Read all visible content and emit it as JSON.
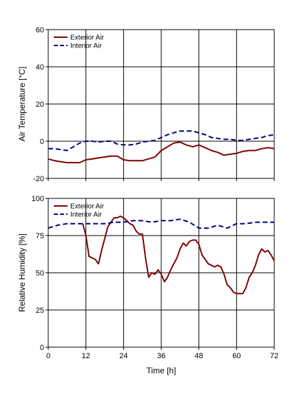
{
  "chart_data": [
    {
      "type": "line",
      "xlabel": "",
      "ylabel": "Air Temperature [°C]",
      "xlim": [
        0,
        72
      ],
      "ylim": [
        -20,
        60
      ],
      "xticks": [
        0,
        12,
        24,
        36,
        48,
        60,
        72
      ],
      "xtick_labels": [
        "",
        "",
        "",
        "",
        "",
        "",
        ""
      ],
      "yticks": [
        -20,
        0,
        20,
        40,
        60
      ],
      "ytick_labels": [
        "-20",
        "0",
        "20",
        "40",
        "60"
      ],
      "grid": true,
      "legend_position": "top-left",
      "series": [
        {
          "name": "Exterior Air",
          "color": "#800000",
          "style": "solid",
          "x": [
            0,
            2,
            4,
            6,
            8,
            10,
            12,
            14,
            16,
            18,
            20,
            22,
            24,
            26,
            28,
            30,
            32,
            34,
            36,
            38,
            40,
            42,
            44,
            46,
            48,
            50,
            52,
            54,
            56,
            58,
            60,
            62,
            64,
            66,
            68,
            70,
            72
          ],
          "y": [
            -9.5,
            -10.5,
            -11,
            -11.5,
            -11.5,
            -11.5,
            -10,
            -9.5,
            -9,
            -8.5,
            -8,
            -8,
            -10,
            -10.5,
            -10.5,
            -10.5,
            -9.5,
            -8.5,
            -5,
            -3,
            -1,
            -0.5,
            -2,
            -3,
            -2,
            -3.5,
            -5,
            -6,
            -7.5,
            -7,
            -6.5,
            -5.5,
            -5,
            -5,
            -4,
            -3.5,
            -4
          ]
        },
        {
          "name": "Interior Air",
          "color": "#00007f",
          "style": "dashed",
          "x": [
            0,
            2,
            4,
            6,
            8,
            10,
            12,
            14,
            16,
            18,
            20,
            22,
            24,
            26,
            28,
            30,
            32,
            34,
            36,
            38,
            40,
            42,
            44,
            46,
            48,
            50,
            52,
            54,
            56,
            58,
            60,
            62,
            64,
            66,
            68,
            70,
            72
          ],
          "y": [
            -4,
            -4,
            -4.5,
            -5,
            -3,
            -1,
            0,
            0,
            -0.5,
            0,
            0,
            -1.5,
            -2,
            -2,
            -1.5,
            -0.5,
            0,
            0.5,
            2,
            3.5,
            4.5,
            5.5,
            5.5,
            5.5,
            4.5,
            3.5,
            2,
            1.5,
            1,
            1,
            0.5,
            0.5,
            1,
            1.5,
            2,
            3,
            3.5
          ]
        }
      ]
    },
    {
      "type": "line",
      "xlabel": "Time [h]",
      "ylabel": "Relative Humidity [%]",
      "xlim": [
        0,
        72
      ],
      "ylim": [
        0,
        100
      ],
      "xticks": [
        0,
        12,
        24,
        36,
        48,
        60,
        72
      ],
      "xtick_labels": [
        "0",
        "12",
        "24",
        "36",
        "48",
        "60",
        "72"
      ],
      "yticks": [
        0,
        25,
        50,
        75,
        100
      ],
      "ytick_labels": [
        "0",
        "25",
        "50",
        "75",
        "100"
      ],
      "grid": true,
      "legend_position": "top-left",
      "series": [
        {
          "name": "Exterior Air",
          "color": "#800000",
          "style": "solid",
          "x": [
            11,
            12,
            13,
            14,
            15,
            16,
            17,
            18,
            19,
            20,
            21,
            22,
            23,
            24,
            25,
            26,
            27,
            28,
            29,
            30,
            31,
            32,
            33,
            34,
            35,
            36,
            37,
            38,
            39,
            40,
            41,
            42,
            43,
            44,
            45,
            46,
            47,
            48,
            49,
            50,
            51,
            52,
            53,
            54,
            55,
            56,
            57,
            58,
            59,
            60,
            61,
            62,
            63,
            64,
            65,
            66,
            67,
            68,
            69,
            70,
            71,
            72
          ],
          "y": [
            83,
            75,
            61,
            60,
            59,
            56,
            65,
            73,
            81,
            84,
            87,
            87,
            88,
            87,
            85,
            83,
            82,
            78,
            76,
            76,
            60,
            47,
            50,
            49,
            52,
            49,
            44,
            47,
            52,
            56,
            60,
            66,
            70,
            68,
            71,
            72,
            72,
            69,
            62,
            59,
            56,
            55,
            54,
            55,
            54,
            49,
            42,
            40,
            37,
            36,
            36,
            36,
            40,
            47,
            50,
            55,
            62,
            66,
            64,
            65,
            62,
            58
          ]
        },
        {
          "name": "Interior Air",
          "color": "#00007f",
          "style": "dashed",
          "x": [
            0,
            3,
            6,
            9,
            12,
            15,
            18,
            21,
            24,
            27,
            30,
            33,
            36,
            39,
            42,
            45,
            48,
            51,
            54,
            57,
            60,
            63,
            66,
            69,
            72
          ],
          "y": [
            80,
            82,
            83,
            83,
            83,
            83,
            83,
            84,
            84,
            85,
            85,
            84,
            85,
            85,
            86,
            84,
            80,
            80,
            82,
            80,
            83,
            83,
            84,
            84,
            84
          ]
        }
      ]
    }
  ]
}
